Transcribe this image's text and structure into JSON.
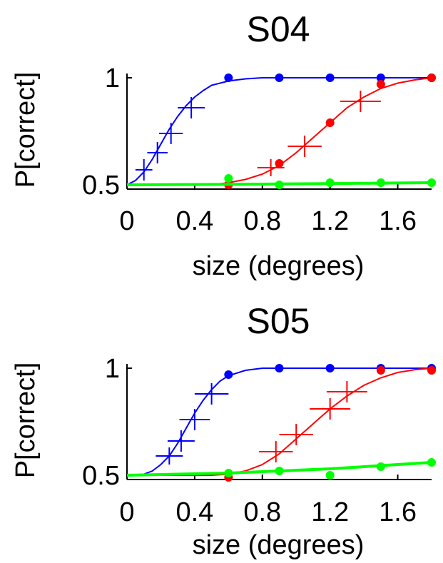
{
  "colors": {
    "blue": "#0000ff",
    "red": "#ff0000",
    "green": "#00ff00",
    "axis": "#000000"
  },
  "chart_data": [
    {
      "type": "line",
      "title": "S04",
      "xlabel": "size (degrees)",
      "ylabel": "P[correct]",
      "xlim": [
        0,
        1.8
      ],
      "ylim": [
        0.48,
        1.02
      ],
      "xticks": [
        0,
        0.4,
        0.8,
        1.2,
        1.6
      ],
      "xtick_labels": [
        "0",
        "0.4",
        "0.8",
        "1.2",
        "1.6"
      ],
      "yticks": [
        0.5,
        1
      ],
      "ytick_labels": [
        "0.5",
        "1"
      ],
      "grid": false,
      "series": [
        {
          "color": "blue",
          "points": [
            {
              "x": 0.1,
              "y": 0.57,
              "xerr": 0.05,
              "yerr": 0.05
            },
            {
              "x": 0.18,
              "y": 0.65,
              "xerr": 0.06,
              "yerr": 0.05
            },
            {
              "x": 0.26,
              "y": 0.74,
              "xerr": 0.07,
              "yerr": 0.05
            },
            {
              "x": 0.38,
              "y": 0.86,
              "xerr": 0.08,
              "yerr": 0.05
            },
            {
              "x": 0.6,
              "y": 1.0
            },
            {
              "x": 0.9,
              "y": 1.0
            },
            {
              "x": 1.2,
              "y": 1.0
            },
            {
              "x": 1.5,
              "y": 1.0
            },
            {
              "x": 1.8,
              "y": 1.0
            }
          ],
          "fit": [
            [
              0.0,
              0.5
            ],
            [
              0.05,
              0.52
            ],
            [
              0.1,
              0.56
            ],
            [
              0.15,
              0.62
            ],
            [
              0.2,
              0.69
            ],
            [
              0.25,
              0.76
            ],
            [
              0.3,
              0.82
            ],
            [
              0.35,
              0.87
            ],
            [
              0.4,
              0.91
            ],
            [
              0.45,
              0.94
            ],
            [
              0.5,
              0.965
            ],
            [
              0.6,
              0.985
            ],
            [
              0.7,
              0.995
            ],
            [
              0.8,
              1.0
            ],
            [
              1.8,
              1.0
            ]
          ]
        },
        {
          "color": "red",
          "points": [
            {
              "x": 0.6,
              "y": 0.5
            },
            {
              "x": 0.85,
              "y": 0.58,
              "xerr": 0.08,
              "yerr": 0.04
            },
            {
              "x": 0.9,
              "y": 0.6
            },
            {
              "x": 1.05,
              "y": 0.68,
              "xerr": 0.1,
              "yerr": 0.05
            },
            {
              "x": 1.2,
              "y": 0.79
            },
            {
              "x": 1.38,
              "y": 0.89,
              "xerr": 0.12,
              "yerr": 0.05
            },
            {
              "x": 1.5,
              "y": 0.97
            },
            {
              "x": 1.8,
              "y": 1.0
            }
          ],
          "fit": [
            [
              0.0,
              0.5
            ],
            [
              0.5,
              0.5
            ],
            [
              0.6,
              0.51
            ],
            [
              0.7,
              0.525
            ],
            [
              0.8,
              0.55
            ],
            [
              0.9,
              0.59
            ],
            [
              1.0,
              0.65
            ],
            [
              1.1,
              0.72
            ],
            [
              1.2,
              0.79
            ],
            [
              1.3,
              0.86
            ],
            [
              1.4,
              0.91
            ],
            [
              1.5,
              0.95
            ],
            [
              1.6,
              0.975
            ],
            [
              1.7,
              0.99
            ],
            [
              1.8,
              1.0
            ]
          ]
        },
        {
          "color": "green",
          "points": [
            {
              "x": 0.6,
              "y": 0.53
            },
            {
              "x": 0.9,
              "y": 0.5
            },
            {
              "x": 1.2,
              "y": 0.51
            },
            {
              "x": 1.5,
              "y": 0.51
            },
            {
              "x": 1.8,
              "y": 0.51
            }
          ],
          "fit": [
            [
              0.0,
              0.5
            ],
            [
              0.6,
              0.502
            ],
            [
              1.2,
              0.506
            ],
            [
              1.8,
              0.51
            ]
          ]
        }
      ]
    },
    {
      "type": "line",
      "title": "S05",
      "xlabel": "size (degrees)",
      "ylabel": "P[correct]",
      "xlim": [
        0,
        1.8
      ],
      "ylim": [
        0.48,
        1.02
      ],
      "xticks": [
        0,
        0.4,
        0.8,
        1.2,
        1.6
      ],
      "xtick_labels": [
        "0",
        "0.4",
        "0.8",
        "1.2",
        "1.6"
      ],
      "yticks": [
        0.5,
        1
      ],
      "ytick_labels": [
        "0.5",
        "1"
      ],
      "grid": false,
      "series": [
        {
          "color": "blue",
          "points": [
            {
              "x": 0.25,
              "y": 0.59,
              "xerr": 0.08,
              "yerr": 0.04
            },
            {
              "x": 0.32,
              "y": 0.66,
              "xerr": 0.08,
              "yerr": 0.05
            },
            {
              "x": 0.4,
              "y": 0.76,
              "xerr": 0.09,
              "yerr": 0.05
            },
            {
              "x": 0.5,
              "y": 0.88,
              "xerr": 0.1,
              "yerr": 0.05
            },
            {
              "x": 0.6,
              "y": 0.97
            },
            {
              "x": 0.9,
              "y": 1.0
            },
            {
              "x": 1.2,
              "y": 1.0
            },
            {
              "x": 1.5,
              "y": 1.0
            },
            {
              "x": 1.8,
              "y": 1.0
            }
          ],
          "fit": [
            [
              0.0,
              0.5
            ],
            [
              0.1,
              0.505
            ],
            [
              0.15,
              0.52
            ],
            [
              0.2,
              0.55
            ],
            [
              0.25,
              0.59
            ],
            [
              0.3,
              0.65
            ],
            [
              0.35,
              0.72
            ],
            [
              0.4,
              0.79
            ],
            [
              0.45,
              0.85
            ],
            [
              0.5,
              0.9
            ],
            [
              0.55,
              0.94
            ],
            [
              0.6,
              0.965
            ],
            [
              0.7,
              0.99
            ],
            [
              0.8,
              1.0
            ],
            [
              1.8,
              1.0
            ]
          ]
        },
        {
          "color": "red",
          "points": [
            {
              "x": 0.6,
              "y": 0.49
            },
            {
              "x": 0.88,
              "y": 0.61,
              "xerr": 0.1,
              "yerr": 0.05
            },
            {
              "x": 1.0,
              "y": 0.69,
              "xerr": 0.1,
              "yerr": 0.05
            },
            {
              "x": 1.2,
              "y": 0.81,
              "xerr": 0.12,
              "yerr": 0.05
            },
            {
              "x": 1.3,
              "y": 0.89,
              "xerr": 0.12,
              "yerr": 0.05
            },
            {
              "x": 1.5,
              "y": 0.99
            },
            {
              "x": 1.8,
              "y": 0.99
            }
          ],
          "fit": [
            [
              0.0,
              0.5
            ],
            [
              0.5,
              0.5
            ],
            [
              0.6,
              0.505
            ],
            [
              0.7,
              0.52
            ],
            [
              0.8,
              0.55
            ],
            [
              0.9,
              0.6
            ],
            [
              1.0,
              0.67
            ],
            [
              1.1,
              0.74
            ],
            [
              1.2,
              0.81
            ],
            [
              1.3,
              0.87
            ],
            [
              1.4,
              0.92
            ],
            [
              1.5,
              0.955
            ],
            [
              1.6,
              0.98
            ],
            [
              1.7,
              0.993
            ],
            [
              1.8,
              1.0
            ]
          ]
        },
        {
          "color": "green",
          "points": [
            {
              "x": 0.6,
              "y": 0.51
            },
            {
              "x": 0.9,
              "y": 0.52
            },
            {
              "x": 1.2,
              "y": 0.5
            },
            {
              "x": 1.5,
              "y": 0.54
            },
            {
              "x": 1.8,
              "y": 0.56
            }
          ],
          "fit": [
            [
              0.0,
              0.5
            ],
            [
              0.6,
              0.51
            ],
            [
              1.2,
              0.53
            ],
            [
              1.8,
              0.56
            ]
          ]
        }
      ]
    }
  ]
}
